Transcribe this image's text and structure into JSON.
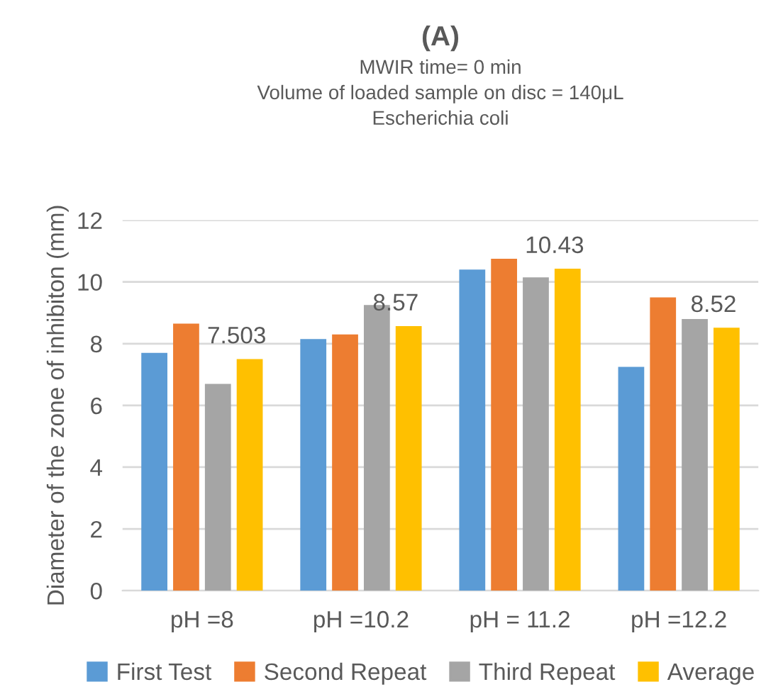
{
  "chart_data": {
    "type": "bar",
    "title": "(A)",
    "subtitle": "MWIR time= 0 min\nVolume of loaded sample on disc = 140μL\nEscherichia coli",
    "ylabel": "Diameter of the zone of inhibiton (mm)",
    "categories": [
      "pH =8",
      "pH =10.2",
      "pH = 11.2",
      "pH =12.2"
    ],
    "series": [
      {
        "name": "First Test",
        "color": "#5b9bd5",
        "values": [
          7.7,
          8.15,
          10.4,
          7.25
        ]
      },
      {
        "name": "Second Repeat",
        "color": "#ed7d31",
        "values": [
          8.65,
          8.3,
          10.75,
          9.5
        ]
      },
      {
        "name": "Third Repeat",
        "color": "#a5a5a5",
        "values": [
          6.7,
          9.25,
          10.15,
          8.8
        ]
      },
      {
        "name": "Average",
        "color": "#ffc000",
        "values": [
          7.503,
          8.57,
          10.43,
          8.52
        ],
        "value_labels": [
          "7.503",
          "8.57",
          "10.43",
          "8.52"
        ]
      }
    ],
    "ylim": [
      0,
      12
    ],
    "yticks": [
      0,
      2,
      4,
      6,
      8,
      10,
      12
    ],
    "grid": "y",
    "legend": "bottom"
  }
}
